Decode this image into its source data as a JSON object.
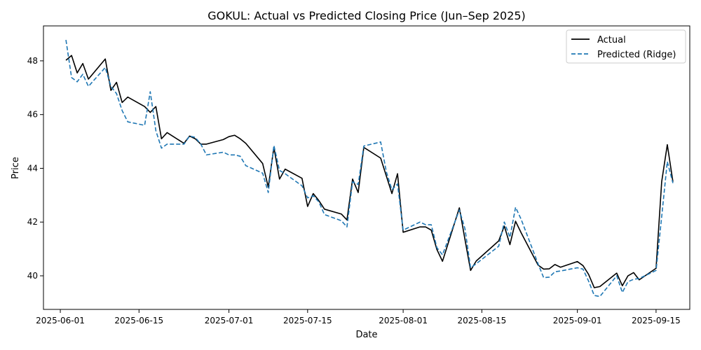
{
  "chart_data": {
    "type": "line",
    "title": "GOKUL: Actual vs Predicted Closing Price (Jun–Sep 2025)",
    "xlabel": "Date",
    "ylabel": "Price",
    "x_ticks": [
      "2025-06-01",
      "2025-06-15",
      "2025-07-01",
      "2025-07-15",
      "2025-08-01",
      "2025-08-15",
      "2025-09-01",
      "2025-09-15"
    ],
    "y_ticks": [
      40,
      42,
      44,
      46,
      48
    ],
    "xlim": [
      "2025-05-29",
      "2025-09-21"
    ],
    "ylim": [
      38.75,
      49.3
    ],
    "grid": false,
    "legend_position": "top-right",
    "x": [
      "2025-06-02",
      "2025-06-03",
      "2025-06-04",
      "2025-06-05",
      "2025-06-06",
      "2025-06-09",
      "2025-06-10",
      "2025-06-11",
      "2025-06-12",
      "2025-06-13",
      "2025-06-16",
      "2025-06-17",
      "2025-06-18",
      "2025-06-19",
      "2025-06-20",
      "2025-06-23",
      "2025-06-24",
      "2025-06-25",
      "2025-06-26",
      "2025-06-27",
      "2025-06-30",
      "2025-07-01",
      "2025-07-02",
      "2025-07-03",
      "2025-07-04",
      "2025-07-07",
      "2025-07-08",
      "2025-07-09",
      "2025-07-10",
      "2025-07-11",
      "2025-07-14",
      "2025-07-15",
      "2025-07-16",
      "2025-07-17",
      "2025-07-18",
      "2025-07-21",
      "2025-07-22",
      "2025-07-23",
      "2025-07-24",
      "2025-07-25",
      "2025-07-28",
      "2025-07-29",
      "2025-07-30",
      "2025-07-31",
      "2025-08-01",
      "2025-08-04",
      "2025-08-05",
      "2025-08-06",
      "2025-08-07",
      "2025-08-08",
      "2025-08-11",
      "2025-08-12",
      "2025-08-13",
      "2025-08-14",
      "2025-08-18",
      "2025-08-19",
      "2025-08-20",
      "2025-08-21",
      "2025-08-22",
      "2025-08-25",
      "2025-08-26",
      "2025-08-27",
      "2025-08-28",
      "2025-08-29",
      "2025-09-01",
      "2025-09-02",
      "2025-09-03",
      "2025-09-04",
      "2025-09-05",
      "2025-09-08",
      "2025-09-09",
      "2025-09-10",
      "2025-09-11",
      "2025-09-12",
      "2025-09-15",
      "2025-09-16",
      "2025-09-17",
      "2025-09-18"
    ],
    "series": [
      {
        "name": "Actual",
        "color": "#000000",
        "dash": "solid",
        "values": [
          48.02,
          48.2,
          47.55,
          47.9,
          47.32,
          48.07,
          46.9,
          47.2,
          46.45,
          46.65,
          46.3,
          46.08,
          46.3,
          45.1,
          45.33,
          44.93,
          45.2,
          45.1,
          44.9,
          44.9,
          45.07,
          45.18,
          45.23,
          45.1,
          44.93,
          44.18,
          43.3,
          44.78,
          43.6,
          43.97,
          43.63,
          42.58,
          43.06,
          42.8,
          42.48,
          42.3,
          42.08,
          43.6,
          43.1,
          44.78,
          44.38,
          43.72,
          43.06,
          43.8,
          41.62,
          41.82,
          41.82,
          41.7,
          40.98,
          40.54,
          42.53,
          41.35,
          40.2,
          40.55,
          41.3,
          41.85,
          41.16,
          42.03,
          41.6,
          40.4,
          40.25,
          40.26,
          40.42,
          40.32,
          40.53,
          40.38,
          40.05,
          39.56,
          39.6,
          40.1,
          39.63,
          40.0,
          40.12,
          39.85,
          40.28,
          43.5,
          44.88,
          43.5
        ]
      },
      {
        "name": "Predicted (Ridge)",
        "color": "#1f77b4",
        "dash": "dashed",
        "values": [
          48.78,
          47.38,
          47.22,
          47.5,
          47.05,
          47.75,
          47.05,
          46.78,
          46.15,
          45.73,
          45.6,
          46.85,
          45.4,
          44.75,
          44.9,
          44.9,
          45.2,
          45.15,
          44.9,
          44.5,
          44.6,
          44.5,
          44.5,
          44.45,
          44.1,
          43.82,
          43.1,
          44.85,
          43.92,
          43.8,
          43.35,
          42.9,
          42.98,
          42.75,
          42.28,
          42.05,
          41.82,
          43.5,
          43.4,
          44.83,
          44.98,
          43.88,
          43.2,
          43.42,
          41.7,
          42.0,
          41.9,
          41.9,
          41.05,
          40.78,
          42.45,
          41.75,
          40.3,
          40.45,
          41.1,
          42.0,
          41.43,
          42.55,
          42.1,
          40.45,
          39.93,
          39.95,
          40.15,
          40.18,
          40.3,
          40.25,
          39.8,
          39.27,
          39.23,
          40.0,
          39.38,
          39.78,
          39.87,
          39.9,
          40.2,
          42.2,
          44.25,
          43.45
        ]
      }
    ]
  }
}
